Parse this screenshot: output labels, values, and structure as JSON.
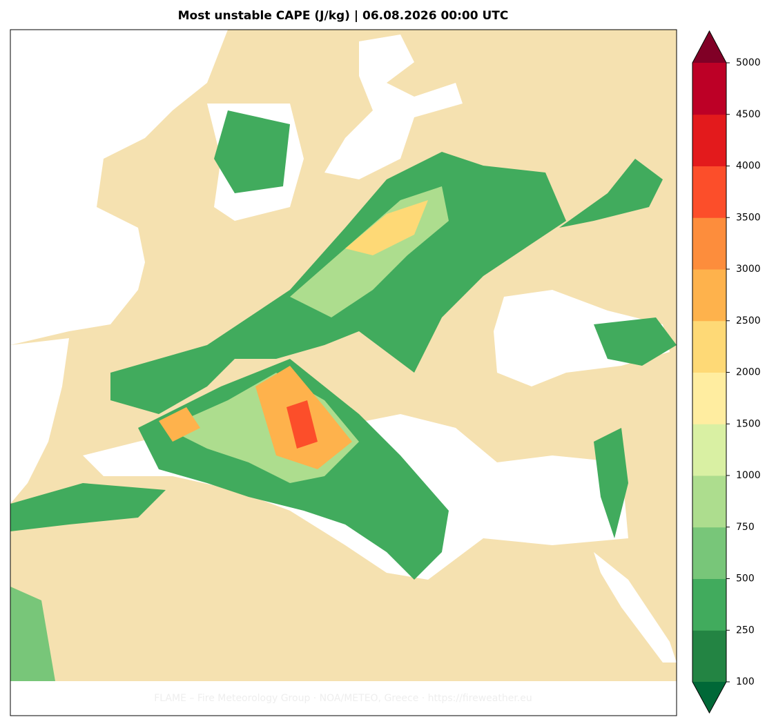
{
  "title": "Most unstable CAPE (J/kg)  |  06.08.2026 00:00 UTC",
  "footer": "FLAME – Fire Meteorology Group · NOA/METEO, Greece · https://fireweather.eu",
  "colorbar": {
    "ticks": [
      100,
      250,
      500,
      750,
      1000,
      1500,
      2000,
      2500,
      3000,
      3500,
      4000,
      4500,
      5000
    ],
    "colors": [
      "#238443",
      "#41ab5d",
      "#78c679",
      "#addd8e",
      "#d9f0a3",
      "#ffeda0",
      "#fed976",
      "#feb24c",
      "#fd8d3c",
      "#fc4e2a",
      "#e31a1c",
      "#bd0026"
    ],
    "under_color": "#006837",
    "over_color": "#800026"
  }
}
